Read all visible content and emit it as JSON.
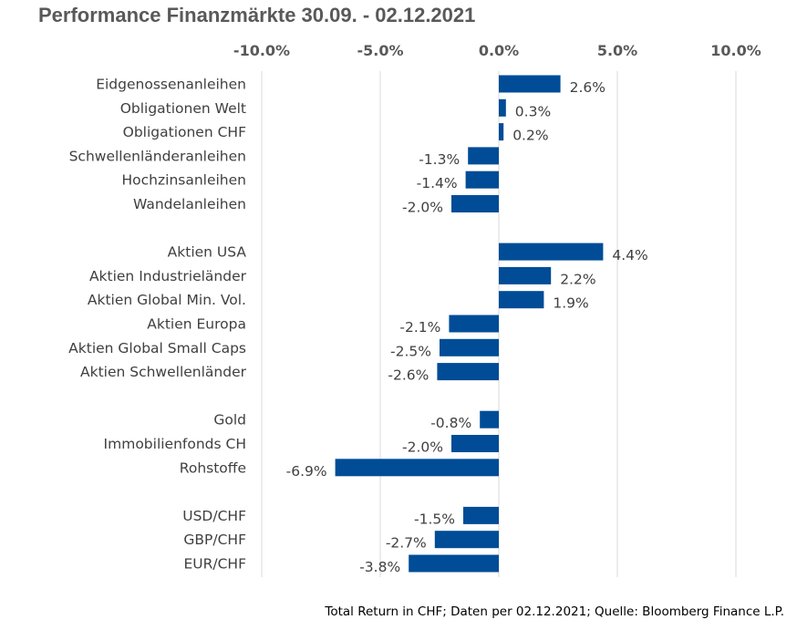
{
  "chart_data": {
    "type": "bar",
    "orientation": "horizontal",
    "title": "Performance Finanzmärkte 30.09. - 02.12.2021",
    "xlim": [
      -0.1,
      0.1
    ],
    "xticks": [
      -0.1,
      -0.05,
      0.0,
      0.05,
      0.1
    ],
    "xtick_labels": [
      "-10.0%",
      "-5.0%",
      "0.0%",
      "5.0%",
      "10.0%"
    ],
    "xaxis_position": "top",
    "grid": true,
    "groups": [
      {
        "categories": [
          "Eidgenossenanleihen",
          "Obligationen Welt",
          "Obligationen CHF",
          "Schwellenländeranleihen",
          "Hochzinsanleihen",
          "Wandelanleihen"
        ],
        "values": [
          0.026,
          0.003,
          0.002,
          -0.013,
          -0.014,
          -0.02
        ],
        "labels": [
          "2.6%",
          "0.3%",
          "0.2%",
          "-1.3%",
          "-1.4%",
          "-2.0%"
        ]
      },
      {
        "categories": [
          "Aktien USA",
          "Aktien Industrieländer",
          "Aktien Global Min. Vol.",
          "Aktien Europa",
          "Aktien Global Small Caps",
          "Aktien Schwellenländer"
        ],
        "values": [
          0.044,
          0.022,
          0.019,
          -0.021,
          -0.025,
          -0.026
        ],
        "labels": [
          "4.4%",
          "2.2%",
          "1.9%",
          "-2.1%",
          "-2.5%",
          "-2.6%"
        ]
      },
      {
        "categories": [
          "Gold",
          "Immobilienfonds CH",
          "Rohstoffe"
        ],
        "values": [
          -0.008,
          -0.02,
          -0.069
        ],
        "labels": [
          "-0.8%",
          "-2.0%",
          "-6.9%"
        ]
      },
      {
        "categories": [
          "USD/CHF",
          "GBP/CHF",
          "EUR/CHF"
        ],
        "values": [
          -0.015,
          -0.027,
          -0.038
        ],
        "labels": [
          "-1.5%",
          "-2.7%",
          "-3.8%"
        ]
      }
    ],
    "bar_color": "#004c97",
    "grid_color": "#d9d9d9"
  },
  "footnote": "Total Return in CHF; Daten per 02.12.2021; Quelle: Bloomberg Finance L.P."
}
